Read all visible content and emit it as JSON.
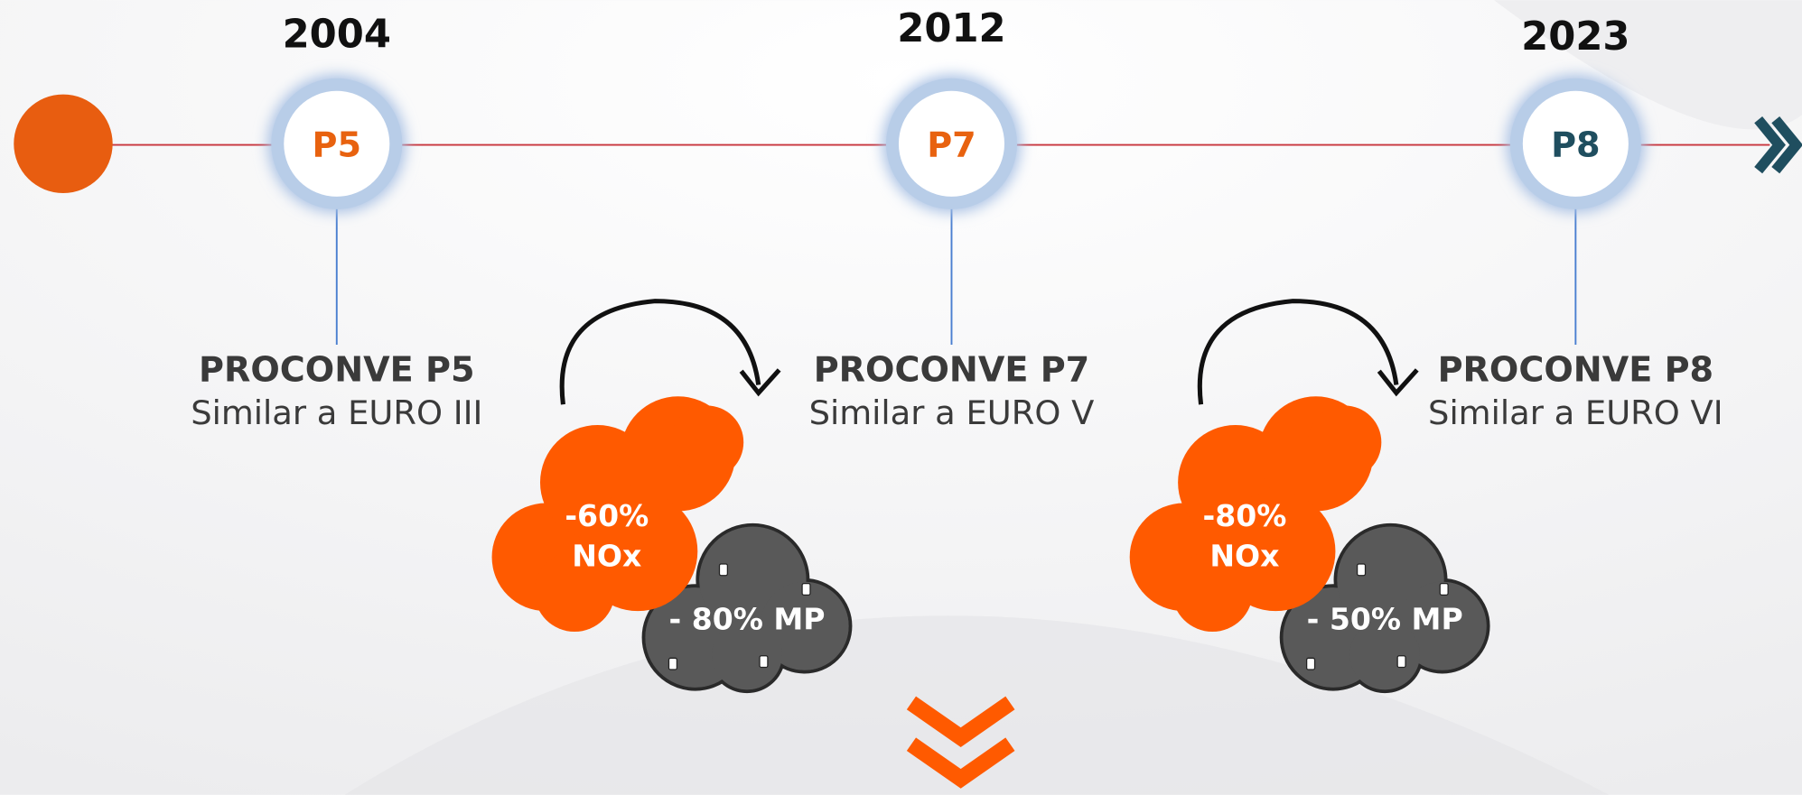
{
  "milestones": [
    {
      "year": "2004",
      "code": "P5",
      "title": "PROCONVE P5",
      "subtitle": "Similar a EURO III"
    },
    {
      "year": "2012",
      "code": "P7",
      "title": "PROCONVE P7",
      "subtitle": "Similar a EURO V"
    },
    {
      "year": "2023",
      "code": "P8",
      "title": "PROCONVE P8",
      "subtitle": "Similar a EURO VI"
    }
  ],
  "reductions": [
    {
      "nox_value": "-60%",
      "nox_label": "NOx",
      "mp": "- 80% MP"
    },
    {
      "nox_value": "-80%",
      "nox_label": "NOx",
      "mp": "- 50% MP"
    }
  ]
}
